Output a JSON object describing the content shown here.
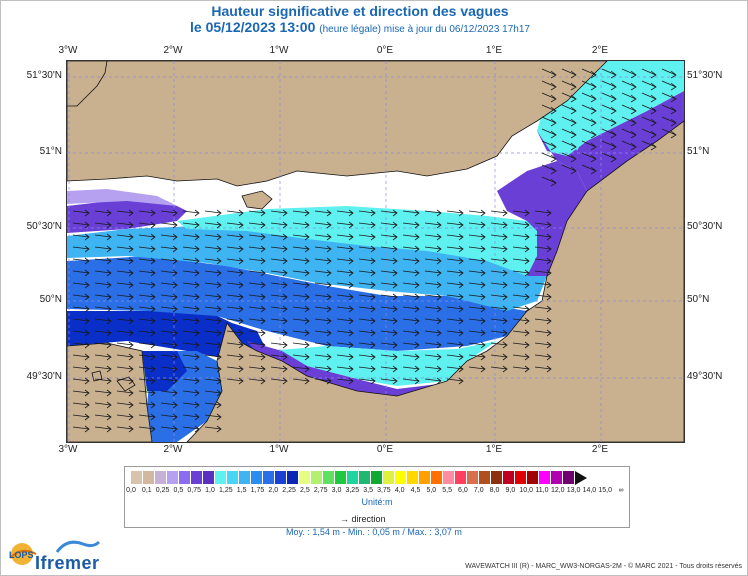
{
  "title": {
    "line1": "Hauteur significative et direction des vagues",
    "line2_main": "le 05/12/2023 13:00",
    "line2_small": "(heure légale) mise à jour du 06/12/2023 17h17"
  },
  "map": {
    "lon_ticks": [
      "3°W",
      "2°W",
      "1°W",
      "0°E",
      "1°E",
      "2°E"
    ],
    "lat_ticks": [
      "51°30'N",
      "51°N",
      "50°30'N",
      "50°N",
      "49°30'N"
    ],
    "lat_ticks_left": [
      "51°30'N",
      "51°N",
      "50°30'N",
      "50°N",
      "49°30'N"
    ],
    "lat_ticks_right": [
      "51°30'N",
      "51°N",
      "50°30'N",
      "50°N",
      "49°30'N"
    ],
    "land_color": "#c9b08e",
    "sea_colors": {
      "low": "#b6a0f0",
      "mid_low": "#6a3fd6",
      "mid": "#5ff0f0",
      "mid_high": "#3fb4f2",
      "high": "#2a6fe6",
      "highest": "#0a2fc8"
    }
  },
  "legend": {
    "colors": [
      "#d8c4ac",
      "#d2b8a0",
      "#c6b0d8",
      "#b8a0f0",
      "#8c6cf0",
      "#6a40d4",
      "#5a30c0",
      "#5ff0f0",
      "#48d6f4",
      "#3fb4f2",
      "#2a8cf0",
      "#2a6fe6",
      "#1a40d4",
      "#0a24b4",
      "#e6ff80",
      "#b4f070",
      "#60e060",
      "#20c840",
      "#20d4a0",
      "#20b870",
      "#10a830",
      "#e0f040",
      "#ffff00",
      "#ffd800",
      "#ffa000",
      "#ff7000",
      "#ff8ca0",
      "#ff4060",
      "#d87050",
      "#b05020",
      "#8c3010",
      "#c00020",
      "#e00000",
      "#a00000",
      "#ff00ff",
      "#b000b0",
      "#700070"
    ],
    "tick_labels": [
      "0,0",
      "0,1",
      "0,25",
      "0,5",
      "0,75",
      "1,0",
      "1,25",
      "1,5",
      "1,75",
      "2,0",
      "2,25",
      "2,5",
      "2,75",
      "3,0",
      "3,25",
      "3,5",
      "3,75",
      "4,0",
      "4,5",
      "5,0",
      "5,5",
      "6,0",
      "7,0",
      "8,0",
      "9,0",
      "10,0",
      "11,0",
      "12,0",
      "13,0",
      "14,0",
      "15,0",
      "∞"
    ],
    "unit": "Unité:m",
    "direction_label": "direction",
    "direction_arrow": "→"
  },
  "stats": "Moy. : 1,54 m   -   Min. : 0,05 m / Max. : 3,07 m",
  "footer": {
    "logo_lops": "LOPS",
    "logo_ifremer": "Ifremer",
    "credit": "WAVEWATCH III (R) - MARC_WW3-NORGAS-2M - © MARC 2021 - Tous droits réservés"
  }
}
